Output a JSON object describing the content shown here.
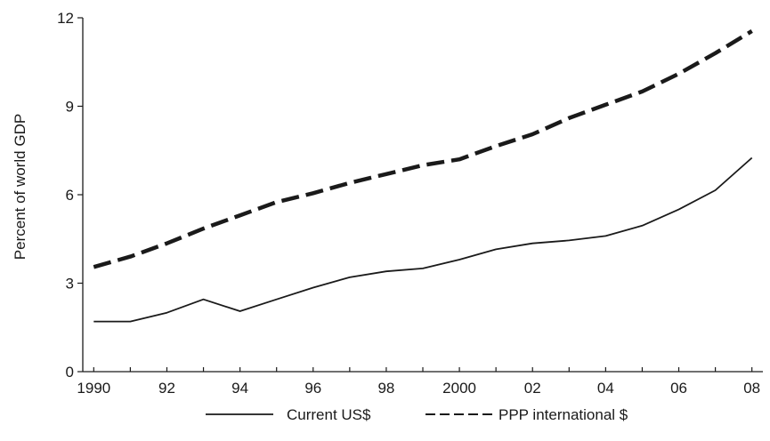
{
  "chart_data": {
    "type": "line",
    "title": "",
    "xlabel": "",
    "ylabel": "Percent of world GDP",
    "x": [
      1990,
      1991,
      1992,
      1993,
      1994,
      1995,
      1996,
      1997,
      1998,
      1999,
      2000,
      2001,
      2002,
      2003,
      2004,
      2005,
      2006,
      2007,
      2008
    ],
    "xlim": [
      1989.7,
      2008.3
    ],
    "ylim": [
      0,
      12
    ],
    "x_ticks": [
      1990,
      1992,
      1994,
      1996,
      1998,
      2000,
      2002,
      2004,
      2006,
      2008
    ],
    "x_tick_labels": [
      "1990",
      "92",
      "94",
      "96",
      "98",
      "2000",
      "02",
      "04",
      "06",
      "08"
    ],
    "y_ticks": [
      0,
      3,
      6,
      9,
      12
    ],
    "y_tick_labels": [
      "0",
      "3",
      "6",
      "9",
      "12"
    ],
    "grid": false,
    "legend_position": "bottom-center",
    "series": [
      {
        "name": "Current US$",
        "style": "solid",
        "color": "#1a1a1a",
        "values": [
          1.7,
          1.7,
          2.0,
          2.45,
          2.05,
          2.45,
          2.85,
          3.2,
          3.4,
          3.5,
          3.8,
          4.15,
          4.35,
          4.45,
          4.6,
          4.95,
          5.5,
          6.15,
          7.25
        ]
      },
      {
        "name": "PPP international $",
        "style": "dashed",
        "color": "#1a1a1a",
        "values": [
          3.55,
          3.9,
          4.35,
          4.85,
          5.3,
          5.75,
          6.05,
          6.4,
          6.7,
          7.0,
          7.2,
          7.65,
          8.05,
          8.6,
          9.05,
          9.5,
          10.1,
          10.8,
          11.55
        ]
      }
    ]
  }
}
